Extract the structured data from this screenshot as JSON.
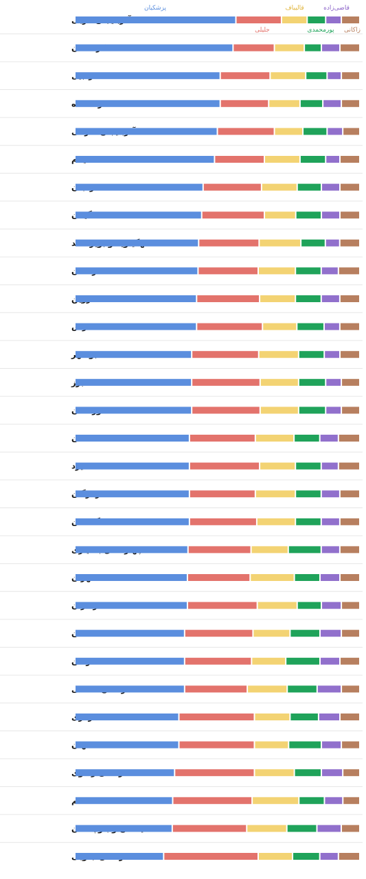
{
  "colors": {
    "pezeshkian": "#5b8ede",
    "jalili": "#e3736c",
    "ghalibaf": "#f3d373",
    "pourmohammadi": "#1fa35a",
    "ghazizadeh": "#9170cc",
    "zakani": "#b77f5f",
    "divider": "#e6e6e6"
  },
  "chart_data": {
    "type": "bar",
    "stacked": true,
    "orientation": "horizontal",
    "unit": "percent",
    "xlim": [
      0,
      100
    ],
    "grid": false,
    "legend_placement": "top",
    "categories": [
      "آذربایجان غربی",
      "کردستان",
      "اردبیل",
      "کرمانشاه",
      "آذربایجان شرقی",
      "ایلام",
      "زنجان",
      "گیلان",
      "کهگیلویه و بویراحمد",
      "لرستان",
      "قزوین",
      "فارس",
      "بوشهر",
      "البرز",
      "خوزستان",
      "همدان",
      "یزد",
      "هرمزگان",
      "گلستان",
      "چهارمحال بختیاری",
      "تهران",
      "مازندران",
      "سمنان",
      "کرمان",
      "خراسان شمالی",
      "مرکزی",
      "اصفهان",
      "خراسان رضوی",
      "قم",
      "سیستان و بلوچستان",
      "خراسان جنوبی"
    ],
    "series": [
      {
        "key": "pezeshkian",
        "name": "پزشکیان",
        "values": [
          56.5,
          55.5,
          51,
          51,
          50,
          49,
          45,
          44.5,
          43,
          43,
          42.5,
          42.5,
          41,
          41,
          41,
          40,
          40,
          40,
          40,
          39.5,
          39.5,
          39.5,
          38.5,
          38.5,
          38.5,
          36.5,
          36.5,
          35,
          34.5,
          34,
          31
        ]
      },
      {
        "key": "jalili",
        "name": "جلیلی",
        "values": [
          16,
          14.5,
          17.5,
          17,
          20,
          17.5,
          20.5,
          22,
          21,
          21,
          22,
          23,
          23.5,
          24,
          24,
          23,
          24.5,
          23,
          23.5,
          22,
          22,
          24.5,
          24,
          23.5,
          22,
          26.5,
          26.5,
          28,
          28,
          26,
          33
        ]
      },
      {
        "key": "ghalibaf",
        "name": "قالیباف",
        "values": [
          9,
          10.5,
          12.5,
          11,
          10,
          12.5,
          12.5,
          11,
          14.5,
          13,
          12.5,
          12,
          14,
          13.5,
          13.5,
          13.5,
          12.5,
          14,
          13.5,
          13,
          15.5,
          14,
          13,
          12,
          14,
          12.5,
          12,
          14,
          16.5,
          14,
          12
        ]
      },
      {
        "key": "pourmohammadi",
        "name": "پورمحمدی",
        "values": [
          6.5,
          6,
          7.5,
          8,
          8.5,
          9,
          8.5,
          9,
          8.5,
          9,
          9,
          9.5,
          9,
          9.5,
          9.5,
          9,
          9,
          9,
          9,
          11.5,
          9,
          8.5,
          10.5,
          12,
          10.5,
          10,
          11.5,
          9.5,
          9,
          10.5,
          9.5
        ]
      },
      {
        "key": "ghazizadeh",
        "name": "قاضی‌زاده",
        "values": [
          5.5,
          6.5,
          5,
          6.5,
          5.5,
          5,
          6.5,
          6.5,
          5,
          6,
          6.5,
          5.5,
          5.5,
          5.5,
          5.5,
          6.5,
          6,
          6.5,
          6.5,
          6.5,
          7,
          7,
          7.5,
          7,
          8.5,
          7.5,
          7,
          7.5,
          6.5,
          8.5,
          6.5
        ]
      },
      {
        "key": "zakani",
        "name": "زاکانی",
        "values": [
          6,
          6.5,
          6,
          6,
          5.5,
          6.5,
          6.5,
          6.5,
          6.5,
          7,
          6.5,
          6.5,
          6.5,
          6,
          6,
          7,
          7,
          6.5,
          6.5,
          6.5,
          6.5,
          6,
          6,
          6.5,
          6,
          6.5,
          6,
          5.5,
          5.5,
          6,
          7
        ]
      }
    ]
  },
  "legend": {
    "pezeshkian": "پزشکیان",
    "jalili": "جلیلی",
    "ghalibaf": "قالیباف",
    "pourmohammadi": "پورمحمدی",
    "ghazizadeh": "قاضی‌زاده",
    "zakani": "زاکانی"
  }
}
